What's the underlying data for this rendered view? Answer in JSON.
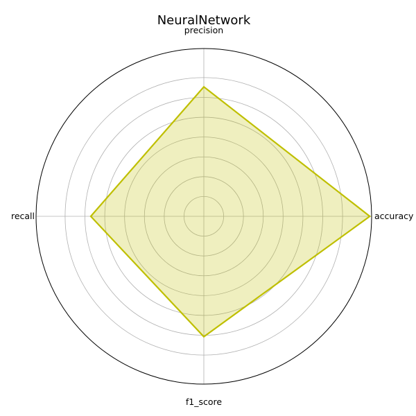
{
  "chart_data": {
    "type": "radar",
    "title": "NeuralNetwork",
    "categories": [
      "accuracy",
      "precision",
      "recall",
      "f1_score"
    ],
    "values": [
      0.91,
      0.71,
      0.62,
      0.66
    ],
    "rlim": [
      0,
      0.92
    ],
    "grid": true,
    "colors": {
      "line": "#bfbf00",
      "fill": "#bfbf00",
      "grid": "#b0b0b0",
      "frame": "#000000"
    }
  }
}
